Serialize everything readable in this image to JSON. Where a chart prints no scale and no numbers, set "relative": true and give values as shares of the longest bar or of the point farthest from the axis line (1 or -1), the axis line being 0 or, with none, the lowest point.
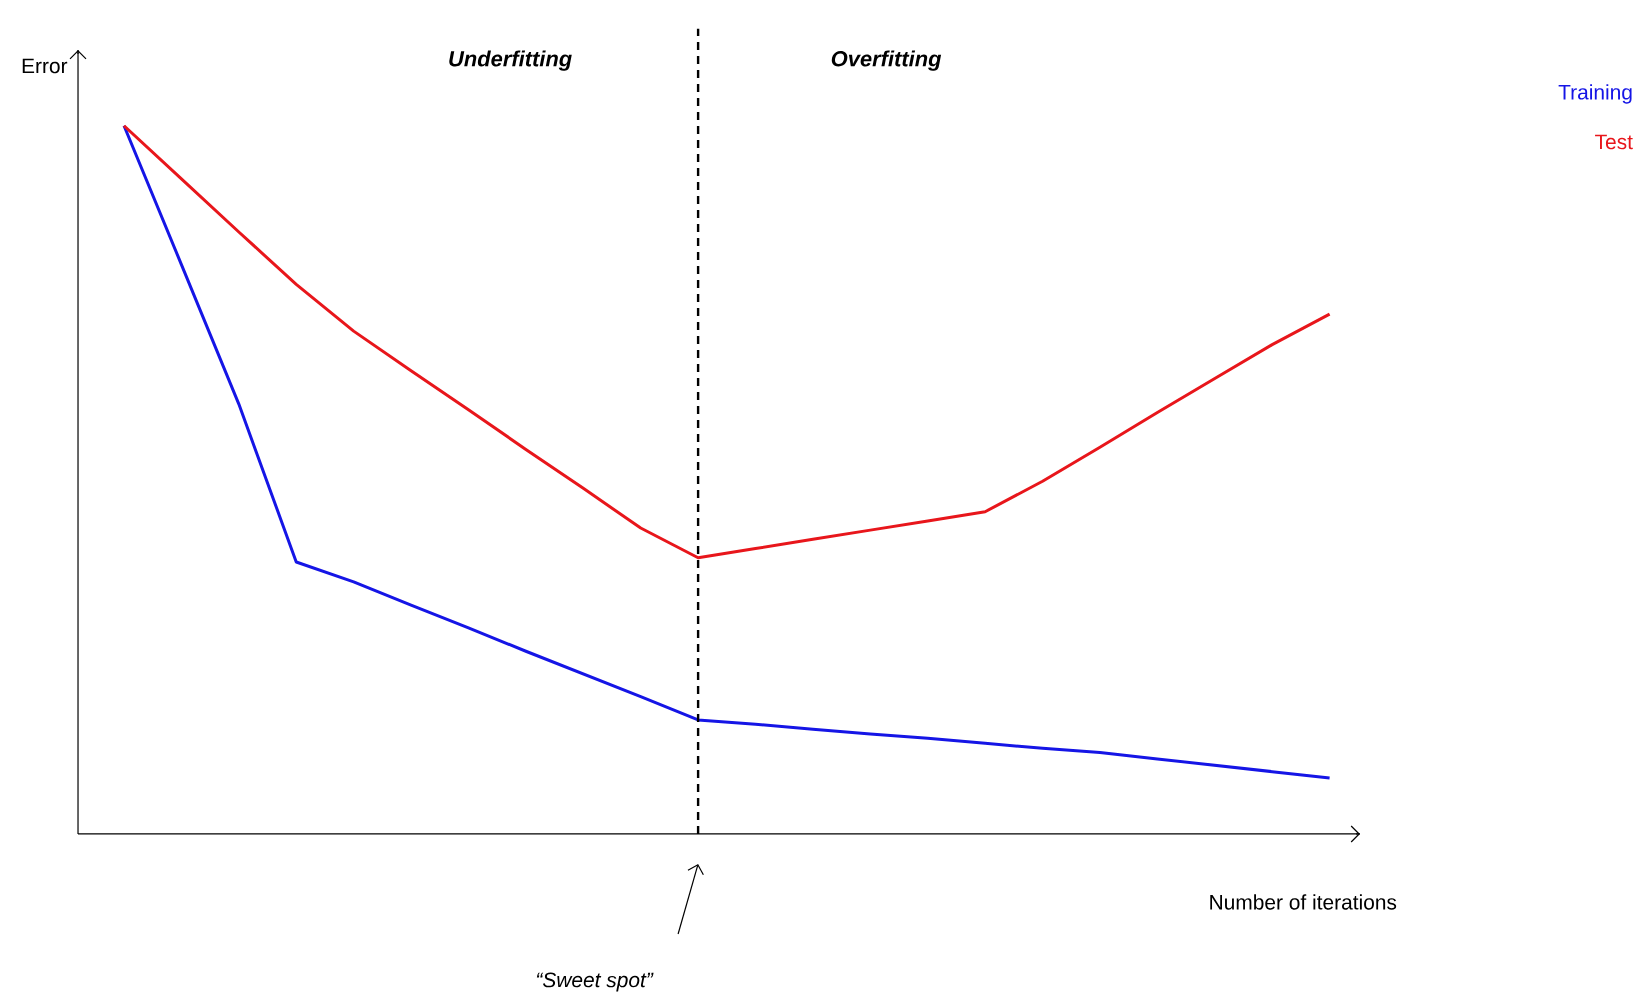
{
  "chart_data": {
    "type": "line",
    "relative": true,
    "xlabel": "Number of iterations",
    "ylabel": "Error",
    "categories": [
      null,
      null,
      null,
      null,
      null,
      null,
      null,
      null,
      null,
      null,
      null,
      null,
      null,
      null,
      null,
      null,
      null,
      null,
      null,
      null,
      null,
      null
    ],
    "series": [
      {
        "name": "Training",
        "color": "#1515e6",
        "values": [
          1.0,
          0.804,
          0.607,
          0.384,
          0.356,
          0.323,
          0.291,
          0.258,
          0.226,
          0.194,
          0.161,
          0.155,
          0.148,
          0.141,
          0.135,
          0.128,
          0.121,
          0.115,
          0.106,
          0.097,
          0.088,
          0.079
        ]
      },
      {
        "name": "Test",
        "color": "#e8161b",
        "values": [
          1.0,
          0.925,
          0.85,
          0.776,
          0.71,
          0.654,
          0.599,
          0.543,
          0.488,
          0.432,
          0.39,
          0.403,
          0.416,
          0.429,
          0.442,
          0.455,
          0.498,
          0.546,
          0.595,
          0.643,
          0.691,
          0.734
        ]
      }
    ],
    "annotations": [
      "Underfitting",
      "Overfitting",
      "“Sweet spot”"
    ]
  }
}
